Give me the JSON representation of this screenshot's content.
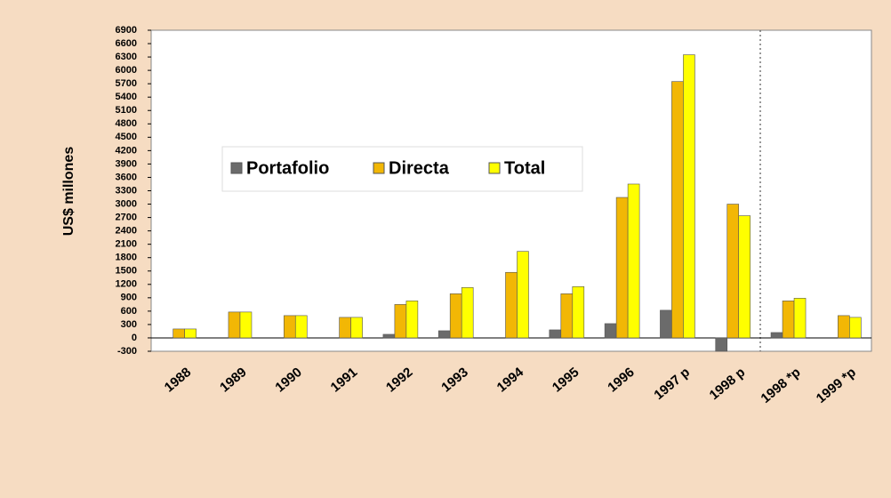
{
  "chart_data": {
    "type": "bar",
    "ylabel": "US$ millones",
    "categories": [
      "1988",
      "1989",
      "1990",
      "1991",
      "1992",
      "1993",
      "1994",
      "1995",
      "1996",
      "1997 p",
      "1998  p",
      "1998 *p",
      "1999 *p"
    ],
    "series": [
      {
        "name": "Portafolio",
        "color": "#6b6b6b",
        "values": [
          null,
          null,
          null,
          null,
          80,
          160,
          null,
          180,
          320,
          620,
          -300,
          120,
          null
        ]
      },
      {
        "name": "Directa",
        "color": "#f2b705",
        "values": [
          200,
          580,
          500,
          460,
          750,
          990,
          1470,
          990,
          3150,
          5750,
          3000,
          830,
          500
        ]
      },
      {
        "name": "Total",
        "color": "#ffff00",
        "values": [
          200,
          580,
          500,
          460,
          830,
          1130,
          1940,
          1150,
          3450,
          6350,
          2740,
          890,
          460
        ]
      }
    ],
    "ylim": [
      -300,
      6900
    ],
    "yticks": [
      -300,
      0,
      300,
      600,
      900,
      1200,
      1500,
      1800,
      2100,
      2400,
      2700,
      3000,
      3300,
      3600,
      3900,
      4200,
      4500,
      4800,
      5100,
      5400,
      5700,
      6000,
      6300,
      6600,
      6900
    ]
  }
}
